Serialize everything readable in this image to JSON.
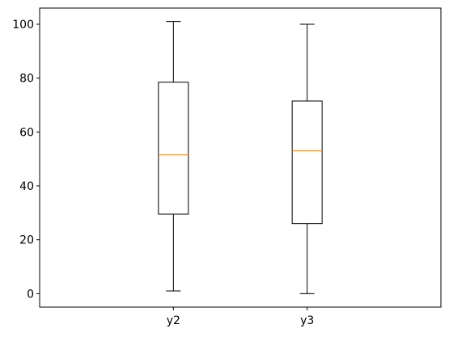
{
  "chart_data": {
    "type": "box",
    "title": "",
    "xlabel": "",
    "ylabel": "",
    "categories": [
      "y2",
      "y3"
    ],
    "boxes": [
      {
        "name": "y2",
        "whisker_low": 1,
        "q1": 29.5,
        "median": 51.5,
        "q3": 78.5,
        "whisker_high": 101
      },
      {
        "name": "y3",
        "whisker_low": 0,
        "q1": 26,
        "median": 53,
        "q3": 71.5,
        "whisker_high": 100
      }
    ],
    "ylim": [
      -5,
      106
    ],
    "yticks": [
      0,
      20,
      40,
      60,
      80,
      100
    ],
    "ytick_labels": [
      "0",
      "20",
      "40",
      "60",
      "80",
      "100"
    ],
    "grid": false,
    "colors": {
      "box": "#000000",
      "median": "#ff7f0e"
    }
  }
}
